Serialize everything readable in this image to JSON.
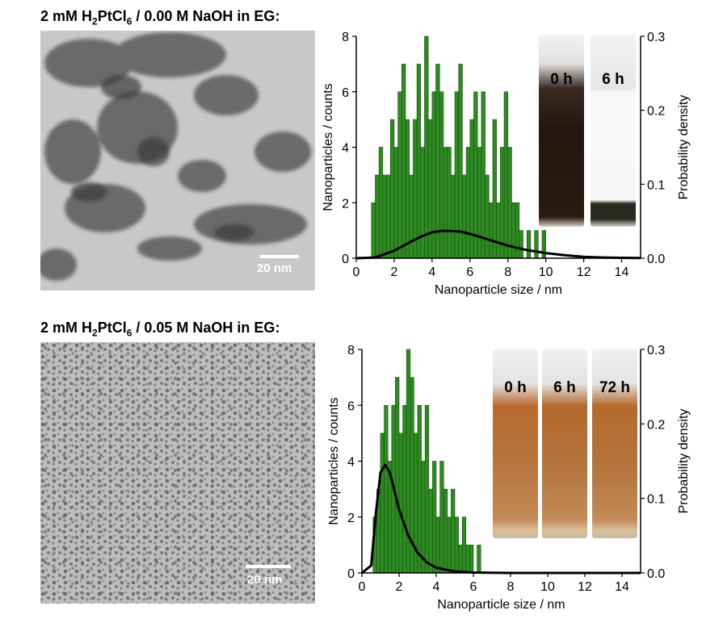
{
  "panels": [
    {
      "title_prefix": "2 mM H",
      "title_sub1": "2",
      "title_mid": "PtCl",
      "title_sub2": "6",
      "title_suffix": " / 0.00 M NaOH  in EG:",
      "scale_label": "20 nm",
      "vial_labels": [
        "0 h",
        "6 h"
      ]
    },
    {
      "title_prefix": "2 mM H",
      "title_sub1": "2",
      "title_mid": "PtCl",
      "title_sub2": "6",
      "title_suffix": " / 0.05 M NaOH in EG:",
      "scale_label": "20 nm",
      "vial_labels": [
        "0 h",
        "6 h",
        "72 h"
      ]
    }
  ],
  "colors": {
    "bar_fill": "#2e8b22",
    "bar_edge": "#174c10",
    "curve": "#000000",
    "tem_light": "#c9c9c9",
    "vial_dark": "#2a1a10",
    "vial_amber": "#b06a30"
  },
  "chart_data": [
    {
      "type": "bar",
      "xlabel": "Nanoparticle size / nm",
      "ylabel": "Nanoparticles / counts",
      "y2label": "Probability density",
      "xlim": [
        0,
        15
      ],
      "ylim": [
        0,
        8
      ],
      "y2lim": [
        0,
        0.3
      ],
      "xticks": [
        "0",
        "2",
        "4",
        "6",
        "8",
        "10",
        "12",
        "14"
      ],
      "yticks": [
        "0",
        "2",
        "4",
        "6",
        "8"
      ],
      "y2ticks": [
        "0.0",
        "0.1",
        "0.2",
        "0.3"
      ],
      "bin_width": 0.2,
      "bin_centers": [
        0.9,
        1.1,
        1.3,
        1.5,
        1.7,
        1.9,
        2.1,
        2.3,
        2.5,
        2.7,
        2.9,
        3.1,
        3.3,
        3.5,
        3.7,
        3.9,
        4.1,
        4.3,
        4.5,
        4.7,
        4.9,
        5.1,
        5.3,
        5.5,
        5.7,
        5.9,
        6.1,
        6.3,
        6.5,
        6.7,
        6.9,
        7.1,
        7.3,
        7.5,
        7.7,
        7.9,
        8.1,
        8.3,
        8.5,
        8.7,
        8.9,
        9.1,
        9.3,
        9.5,
        9.7,
        9.9
      ],
      "counts": [
        2,
        3,
        4,
        3,
        3,
        5,
        4,
        6,
        7,
        5,
        3,
        5,
        7,
        4,
        8,
        5,
        6,
        7,
        6,
        4,
        4,
        3,
        6,
        7,
        3,
        4,
        5,
        6,
        4,
        6,
        3,
        2,
        5,
        2,
        4,
        6,
        4,
        2,
        2,
        1,
        0,
        1,
        0,
        1,
        0,
        1
      ],
      "fit_curve": {
        "x": [
          0,
          1,
          2,
          3,
          3.5,
          4,
          4.5,
          5,
          5.5,
          6,
          6.5,
          7,
          8,
          9,
          10,
          11,
          12,
          13,
          14,
          15
        ],
        "y": [
          0,
          0.001,
          0.01,
          0.024,
          0.03,
          0.035,
          0.037,
          0.037,
          0.036,
          0.033,
          0.029,
          0.025,
          0.017,
          0.011,
          0.007,
          0.004,
          0.002,
          0.001,
          0.0005,
          0.0002
        ]
      }
    },
    {
      "type": "bar",
      "xlabel": "Nanoparticle size / nm",
      "ylabel": "Nanoparticles / counts",
      "y2label": "Probability density",
      "xlim": [
        0,
        15
      ],
      "ylim": [
        0,
        8
      ],
      "y2lim": [
        0,
        0.3
      ],
      "xticks": [
        "0",
        "2",
        "4",
        "6",
        "8",
        "10",
        "12",
        "14"
      ],
      "yticks": [
        "0",
        "2",
        "4",
        "6",
        "8"
      ],
      "y2ticks": [
        "0.0",
        "0.1",
        "0.2",
        "0.3"
      ],
      "bin_width": 0.2,
      "bin_centers": [
        0.7,
        0.9,
        1.1,
        1.3,
        1.5,
        1.7,
        1.9,
        2.1,
        2.3,
        2.5,
        2.7,
        2.9,
        3.1,
        3.3,
        3.5,
        3.7,
        3.9,
        4.1,
        4.3,
        4.5,
        4.7,
        4.9,
        5.1,
        5.3,
        5.5,
        5.7,
        5.9,
        6.1,
        6.3
      ],
      "counts": [
        2,
        3,
        5,
        6,
        4,
        6,
        7,
        5,
        6,
        8,
        7,
        5,
        6,
        4,
        6,
        3,
        4,
        2,
        4,
        3,
        2,
        3,
        2,
        1,
        2,
        1,
        1,
        0,
        1
      ],
      "fit_curve": {
        "x": [
          0,
          0.5,
          0.75,
          1,
          1.25,
          1.5,
          1.75,
          2,
          2.5,
          3,
          3.5,
          4,
          5,
          6,
          8,
          15
        ],
        "y": [
          0,
          0.01,
          0.08,
          0.135,
          0.145,
          0.135,
          0.11,
          0.085,
          0.05,
          0.027,
          0.014,
          0.007,
          0.002,
          0.0005,
          0,
          0
        ]
      }
    }
  ]
}
